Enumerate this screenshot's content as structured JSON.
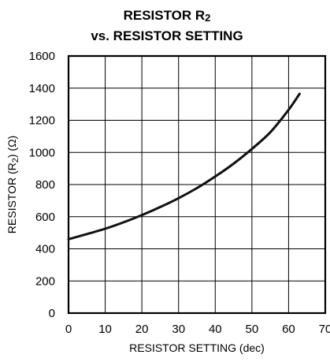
{
  "chart_data": {
    "type": "line",
    "title_line1_prefix": "RESISTOR R",
    "title_line1_sub": "2",
    "title_line2": "vs. RESISTOR SETTING",
    "xlabel": "RESISTOR SETTING (dec)",
    "ylabel_prefix": "RESISTOR (R",
    "ylabel_sub": "2",
    "ylabel_suffix": ") (Ω)",
    "xlim": [
      0,
      70
    ],
    "ylim": [
      0,
      1600
    ],
    "x_ticks": [
      "0",
      "10",
      "20",
      "30",
      "40",
      "50",
      "60",
      "70"
    ],
    "y_ticks": [
      "0",
      "200",
      "400",
      "600",
      "800",
      "1000",
      "1200",
      "1400",
      "1600"
    ],
    "grid": true,
    "series": [
      {
        "x": [
          0,
          5,
          10,
          15,
          20,
          25,
          30,
          35,
          40,
          45,
          50,
          55,
          60,
          63
        ],
        "y": [
          460,
          492,
          525,
          565,
          610,
          660,
          715,
          778,
          850,
          930,
          1022,
          1125,
          1265,
          1365
        ]
      }
    ]
  }
}
